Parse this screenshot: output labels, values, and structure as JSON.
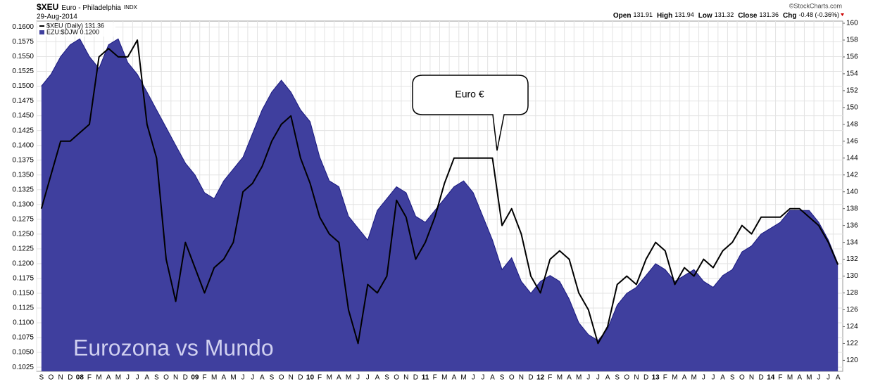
{
  "chart_data": {
    "type": "line",
    "title": "$XEU",
    "subtitle": "Euro - Philadelphia",
    "exchange": "INDX",
    "date": "29-Aug-2014",
    "credit": "©StockCharts.com",
    "quote": [
      {
        "label": "Open",
        "value": 131.91
      },
      {
        "label": "High",
        "value": 131.94
      },
      {
        "label": "Low",
        "value": 131.32
      },
      {
        "label": "Close",
        "value": 131.36
      },
      {
        "label": "Chg",
        "value": "-0.48 (-0.36%)"
      }
    ],
    "annotations": [
      "Euro €",
      "Eurozona vs Mundo"
    ],
    "categories": [
      "S",
      "O",
      "N",
      "D",
      "08",
      "F",
      "M",
      "A",
      "M",
      "J",
      "J",
      "A",
      "S",
      "O",
      "N",
      "D",
      "09",
      "F",
      "M",
      "A",
      "M",
      "J",
      "J",
      "A",
      "S",
      "O",
      "N",
      "D",
      "10",
      "F",
      "M",
      "A",
      "M",
      "J",
      "J",
      "A",
      "S",
      "O",
      "N",
      "D",
      "11",
      "F",
      "M",
      "A",
      "M",
      "J",
      "J",
      "A",
      "S",
      "O",
      "N",
      "D",
      "12",
      "F",
      "M",
      "A",
      "M",
      "J",
      "J",
      "A",
      "S",
      "O",
      "N",
      "D",
      "13",
      "F",
      "M",
      "A",
      "M",
      "J",
      "J",
      "A",
      "S",
      "O",
      "N",
      "D",
      "14",
      "F",
      "M",
      "A",
      "M",
      "J",
      "J",
      "A"
    ],
    "series": [
      {
        "name": "$XEU (Daily) 131.36",
        "type": "line",
        "axis": "y2",
        "color": "#000000",
        "values": [
          138,
          142,
          146,
          146,
          147,
          148,
          156,
          157,
          156,
          156,
          158,
          148,
          144,
          132,
          127,
          134,
          131,
          128,
          131,
          132,
          134,
          140,
          141,
          143,
          146,
          148,
          149,
          144,
          141,
          137,
          135,
          134,
          126,
          122,
          129,
          128,
          130,
          139,
          137,
          132,
          134,
          137,
          141,
          144,
          144,
          144,
          144,
          144,
          136,
          138,
          135,
          130,
          128,
          132,
          133,
          132,
          128,
          126,
          122,
          124,
          129,
          130,
          129,
          132,
          134,
          133,
          129,
          131,
          130,
          132,
          131,
          133,
          134,
          136,
          135,
          137,
          137,
          137,
          138,
          138,
          137,
          136,
          134,
          131.36
        ]
      },
      {
        "name": "EZU:$DJW 0.1200",
        "type": "area",
        "axis": "y",
        "color": "#3f3f9e",
        "values": [
          0.15,
          0.152,
          0.155,
          0.157,
          0.158,
          0.155,
          0.153,
          0.157,
          0.158,
          0.154,
          0.152,
          0.149,
          0.146,
          0.143,
          0.14,
          0.137,
          0.135,
          0.132,
          0.131,
          0.134,
          0.136,
          0.138,
          0.142,
          0.146,
          0.149,
          0.151,
          0.149,
          0.146,
          0.144,
          0.138,
          0.134,
          0.133,
          0.128,
          0.126,
          0.124,
          0.129,
          0.131,
          0.133,
          0.132,
          0.128,
          0.127,
          0.129,
          0.131,
          0.133,
          0.134,
          0.132,
          0.128,
          0.124,
          0.119,
          0.121,
          0.117,
          0.115,
          0.117,
          0.118,
          0.117,
          0.114,
          0.11,
          0.108,
          0.107,
          0.109,
          0.113,
          0.115,
          0.116,
          0.118,
          0.12,
          0.119,
          0.117,
          0.118,
          0.119,
          0.117,
          0.116,
          0.118,
          0.119,
          0.122,
          0.123,
          0.125,
          0.126,
          0.127,
          0.129,
          0.129,
          0.129,
          0.127,
          0.124,
          0.12
        ]
      }
    ],
    "ylim": [
      0.1018,
      0.161
    ],
    "yticks": [
      0.1025,
      {
        "value": 0.105,
        "label": "0.1050"
      },
      0.1075,
      {
        "value": 0.11,
        "label": "0.1100"
      },
      0.1125,
      {
        "value": 0.115,
        "label": "0.1150"
      },
      0.1175,
      {
        "value": 0.12,
        "label": "0.1200"
      },
      0.1225,
      {
        "value": 0.125,
        "label": "0.1250"
      },
      0.1275,
      {
        "value": 0.13,
        "label": "0.1300"
      },
      0.1325,
      {
        "value": 0.135,
        "label": "0.1350"
      },
      0.1375,
      {
        "value": 0.14,
        "label": "0.1400"
      },
      0.1425,
      {
        "value": 0.145,
        "label": "0.1450"
      },
      0.1475,
      {
        "value": 0.15,
        "label": "0.1500"
      },
      0.1525,
      {
        "value": 0.155,
        "label": "0.1550"
      },
      0.1575,
      {
        "value": 0.16,
        "label": "0.1600"
      }
    ],
    "y2lim": [
      118.7,
      160.25
    ],
    "y2ticks": [
      120,
      122,
      124,
      126,
      128,
      130,
      132,
      134,
      136,
      138,
      140,
      142,
      144,
      146,
      148,
      150,
      152,
      154,
      156,
      158,
      160
    ],
    "grid": true
  }
}
